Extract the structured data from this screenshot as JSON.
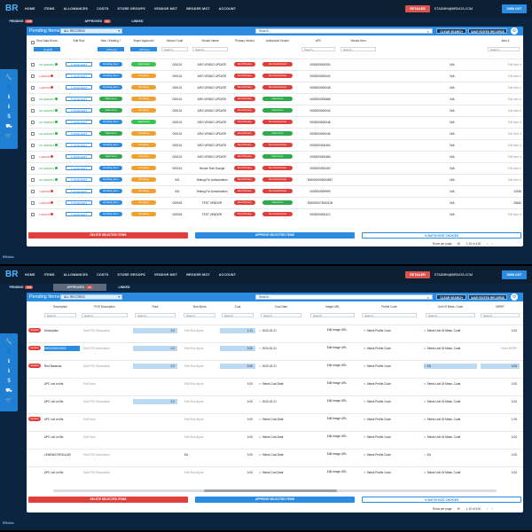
{
  "app": {
    "logo": "BR",
    "nav": [
      "HOME",
      "ITEMS",
      "ALLOWANCES",
      "COSTS",
      "STORE GROUPS",
      "VENDOR MGT",
      "BROKER MGT",
      "ACCOUNT"
    ],
    "retailer_button": "RETAILER",
    "email": "ETADMIN@BRDATA.COM",
    "signout": "SIGN OUT",
    "footer": "BRdata"
  },
  "tabs": [
    {
      "label": "PENDING",
      "count": "678"
    },
    {
      "label": "APPROVED",
      "count": "12"
    },
    {
      "label": "LINKED",
      "count": ""
    }
  ],
  "sidebar_icons": [
    "wrench-icon",
    "user-icon",
    "info-icon",
    "info-icon",
    "dollar-icon",
    "truck-icon",
    "cart-icon"
  ],
  "colors": {
    "accent": "#2a8be0",
    "danger": "#e0403c",
    "success": "#2eaa4a",
    "warning": "#f0a030",
    "nav_bg": "#0d1f33"
  },
  "top": {
    "card_title": "Pending Items",
    "dropdown": "ALL RECORDS",
    "search_placeholder": "Search...",
    "clear_search": "CLEAR SEARCH",
    "save_edited": "SAVE EDITED RECORDS",
    "columns": [
      "Row Data Errors",
      "Edit Row",
      "New / Existing ?",
      "Buyer Approved",
      "Vendor Code",
      "Vendor Name",
      "Primary Vendor",
      "Authorized Vendor",
      "UPC",
      "Vendor Item",
      "Item #"
    ],
    "filters": {
      "errors": "CLEAR",
      "new_existing": "All Items",
      "buyer": "All Items",
      "search": "Search..."
    },
    "rows": [
      {
        "status": "NO ERRORS",
        "ok": true,
        "edit": "ROW EDIT",
        "type": "Existing Item",
        "approved": "Approved",
        "vcode": "000101",
        "vname": "ARG VENDO UPDATE",
        "primary": "Not Primary",
        "auth": "Not Authorized",
        "upc": "0000000000000",
        "vitem": "N/A",
        "item": "Edit Item #"
      },
      {
        "status": "1 ERROR",
        "ok": false,
        "edit": "ROW EDIT",
        "type": "Existing Item",
        "approved": "Pending",
        "vcode": "000101",
        "vname": "ARG VENDO UPDATE",
        "primary": "Not Primary",
        "auth": "Not Authorized",
        "upc": "0000000000040",
        "vitem": "N/A",
        "item": "Edit Item #"
      },
      {
        "status": "1 ERROR",
        "ok": false,
        "edit": "ROW EDIT",
        "type": "Existing Item",
        "approved": "Pending",
        "vcode": "000101",
        "vname": "ARG VENDO UPDATE",
        "primary": "Not Primary",
        "auth": "Not Authorized",
        "upc": "0000000000048",
        "vitem": "N/A",
        "item": "Edit Item #"
      },
      {
        "status": "NO ERRORS",
        "ok": true,
        "edit": "ROW EDIT",
        "type": "New Item",
        "approved": "Pending",
        "vcode": "000101",
        "vname": "ARG VENDO UPDATE",
        "primary": "Not Primary",
        "auth": "New Item",
        "upc": "0000000000888",
        "vitem": "N/A",
        "item": "Edit Item #"
      },
      {
        "status": "NO ERRORS",
        "ok": true,
        "edit": "ROW EDIT",
        "type": "New Item",
        "approved": "Pending",
        "vcode": "000101",
        "vname": "ARG VENDO UPDATE",
        "primary": "Not Primary",
        "auth": "New Item",
        "upc": "0000000000044",
        "vitem": "N/A",
        "item": "Edit Item #"
      },
      {
        "status": "NO ERRORS",
        "ok": true,
        "edit": "ROW EDIT",
        "type": "Existing Item",
        "approved": "Approved",
        "vcode": "000101",
        "vname": "ARG VENDO UPDATE",
        "primary": "Not Primary",
        "auth": "Not Authorized",
        "upc": "0000000000048",
        "vitem": "N/A",
        "item": "Edit Item #"
      },
      {
        "status": "NO ERRORS",
        "ok": true,
        "edit": "ROW EDIT",
        "type": "New Item",
        "approved": "Pending",
        "vcode": "000101",
        "vname": "ARG VENDO UPDATE",
        "primary": "Not Primary",
        "auth": "New Item",
        "upc": "0000000000046",
        "vitem": "N/A",
        "item": "Edit Item #"
      },
      {
        "status": "NO ERRORS",
        "ok": true,
        "edit": "ROW EDIT",
        "type": "Existing Item",
        "approved": "Pending",
        "vcode": "000101",
        "vname": "ARG VENDO UPDATE",
        "primary": "Not Primary",
        "auth": "Not Authorized",
        "upc": "0000000000464",
        "vitem": "N/A",
        "item": "Edit Item #"
      },
      {
        "status": "1 ERROR",
        "ok": false,
        "edit": "ROW EDIT",
        "type": "New Item",
        "approved": "Pending",
        "vcode": "000101",
        "vname": "ARG VENDO UPDATE",
        "primary": "Not Primary",
        "auth": "New Item",
        "upc": "0000000000466",
        "vitem": "N/A",
        "item": "Edit Item #"
      },
      {
        "status": "NO ERRORS",
        "ok": true,
        "edit": "ROW EDIT",
        "type": "Existing Item",
        "approved": "Pending",
        "vcode": "000241",
        "vname": "Vendor Test Change",
        "primary": "Not Primary",
        "auth": "Not Authorized",
        "upc": "0000000000430",
        "vitem": "N/A",
        "item": "Edit Item #"
      },
      {
        "status": "NO ERRORS",
        "ok": true,
        "edit": "ROW EDIT",
        "type": "Existing Item",
        "approved": "Pending",
        "vcode": "541",
        "vname": "Testing For Authorization",
        "primary": "Not Primary",
        "auth": "Not Authorized",
        "upc": "0000000000004567",
        "vitem": "N/A",
        "item": "Edit Item #"
      },
      {
        "status": "1 ERROR",
        "ok": false,
        "edit": "ROW EDIT",
        "type": "Existing Item",
        "approved": "Pending",
        "vcode": "541",
        "vname": "Testing For Authorization",
        "primary": "Not Primary",
        "auth": "Not Authorized",
        "upc": "0000000009999",
        "vitem": "N/A",
        "item": "12345"
      },
      {
        "status": "1 ERROR",
        "ok": false,
        "edit": "ROW EDIT",
        "type": "Existing Item",
        "approved": "Pending",
        "vcode": "000003",
        "vname": "TEST VENDOR",
        "primary": "Not Primary",
        "auth": "New Item",
        "upc": "0000000075252106",
        "vitem": "N/A",
        "item": "33542"
      },
      {
        "status": "1 ERROR",
        "ok": false,
        "edit": "ROW EDIT",
        "type": "Existing Item",
        "approved": "Pending",
        "vcode": "000003",
        "vname": "TEST VENDOR",
        "primary": "Not Primary",
        "auth": "Not Authorized",
        "upc": "0000000000412",
        "vitem": "N/A",
        "item": "Edit Item #"
      }
    ],
    "delete_selected": "DELETE SELECTED ITEMS",
    "approve_selected": "APPROVE SELECTED ITEMS",
    "batch_edit": "BATCH EDIT CHOICES",
    "rows_per_page_label": "Rows per page:",
    "rows_per_page": "15",
    "range": "1-15 of 416"
  },
  "bottom": {
    "card_title": "Pending Items",
    "dropdown": "ALL RECORDS",
    "search_placeholder": "Search...",
    "clear_search": "CLEAR SEARCH",
    "save_edited": "SAVE EDITED RECORDS",
    "columns": [
      "Description",
      "POS Description",
      "Pack",
      "Size Alpha",
      "Cost",
      "Cost Date",
      "Image URL",
      "Profile Code",
      "Unit Of Meas. Code",
      "MSRP"
    ],
    "rows": [
      {
        "flag": "Vendor",
        "desc": "Description",
        "pos": "Edit POS Description",
        "pack": "0.2",
        "size": "Edit Size Alpha",
        "cost": "1.11",
        "date": "2020-02-21",
        "img": "Edit Image URL",
        "profile": "Select Profile Code",
        "uom": "Select Unit Of Meas. Code",
        "msrp": "0.00"
      },
      {
        "flag": "Vendor",
        "desc": "00000000000000",
        "pos": "Edit POS Description",
        "pack": "0.2",
        "size": "Edit Size Alpha",
        "cost": "0.00",
        "date": "2020-02-21",
        "img": "Edit Image URL",
        "profile": "Select Profile Code",
        "uom": "Select Unit Of Meas. Code",
        "msrp": "Enter MSRP"
      },
      {
        "flag": "Vendor",
        "desc": "Red Bananas",
        "pos": "Edit POS Description",
        "pack": "0.2",
        "size": "Edit Size Alpha",
        "cost": "0.00",
        "date": "2020-02-21",
        "img": "Edit Image URL",
        "profile": "Select Profile Code",
        "uom": "EA",
        "msrp": "0.00"
      },
      {
        "flag": "",
        "desc": "UPC not on file",
        "pos": "Edit Pack",
        "pack": "",
        "size": "Edit Size Alpha",
        "cost": "0.00",
        "date": "Select Cost Date",
        "img": "Edit Image URL",
        "profile": "Select Profile Code",
        "uom": "Select Unit Of Meas. Code",
        "msrp": "0.00"
      },
      {
        "flag": "",
        "desc": "UPC not on file",
        "pos": "Edit POS Description",
        "pack": "0.2",
        "size": "Edit Size Alpha",
        "cost": "0.00",
        "date": "2020-02-21",
        "img": "Edit Image URL",
        "profile": "Select Profile Code",
        "uom": "Select Unit Of Meas. Code",
        "msrp": "0.00"
      },
      {
        "flag": "Vendor",
        "desc": "UPC not on file",
        "pos": "Edit Pack",
        "pack": "",
        "size": "Edit Size Alpha",
        "cost": "0.00",
        "date": "Select Cost Date",
        "img": "Edit Image URL",
        "profile": "Select Profile Code",
        "uom": "Select Unit Of Meas. Code",
        "msrp": "1.00"
      },
      {
        "flag": "",
        "desc": "UPC not on file",
        "pos": "Edit Pack",
        "pack": "",
        "size": "Edit Size Alpha",
        "cost": "0.00",
        "date": "Select Cost Date",
        "img": "Edit Image URL",
        "profile": "Select Profile Code",
        "uom": "Select Unit Of Meas. Code",
        "msrp": "0.00"
      },
      {
        "flag": "",
        "desc": "LEMONS REGULAR",
        "pos": "Edit POS Description",
        "pack": "",
        "size": "EA",
        "cost": "0.00",
        "date": "Select Cost Date",
        "img": "Edit Image URL",
        "profile": "Select Profile Code",
        "uom": "EA",
        "msrp": "0.00"
      },
      {
        "flag": "",
        "desc": "UPC not on file",
        "pos": "Edit POS Description",
        "pack": "",
        "size": "Edit Size Alpha",
        "cost": "0.00",
        "date": "Select Cost Date",
        "img": "Edit Image URL",
        "profile": "Select Profile Code",
        "uom": "Select Unit Of Meas. Code",
        "msrp": "0.00"
      }
    ],
    "delete_selected": "DELETE SELECTED ITEMS",
    "approve_selected": "APPROVE SELECTED ITEMS",
    "batch_edit": "BATCH EDIT CHOICES",
    "rows_per_page_label": "Rows per page:",
    "rows_per_page": "10",
    "range": "1-10 of 416"
  }
}
